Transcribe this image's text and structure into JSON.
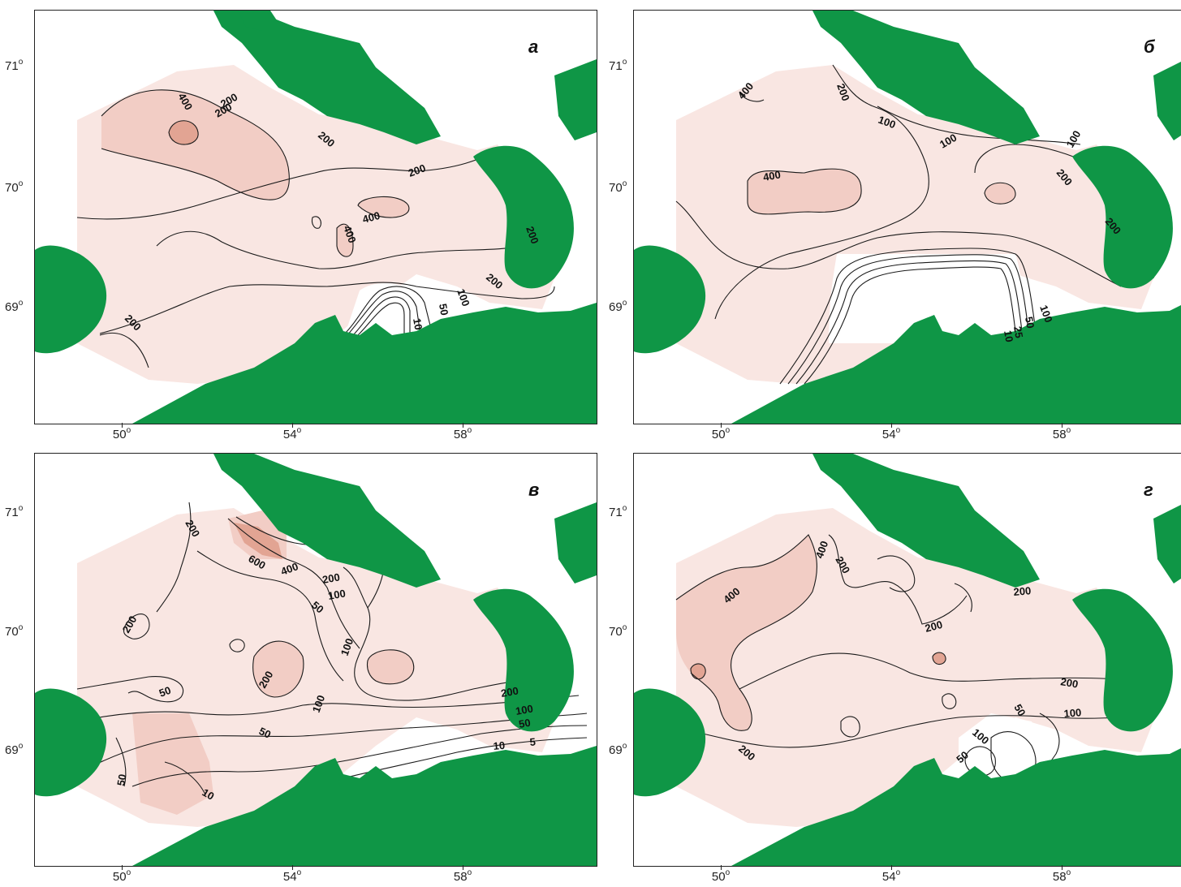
{
  "colors": {
    "land": "#0f9646",
    "sea_light": "#f9e6e2",
    "sea_mid": "#f2cdc5",
    "sea_dark": "#e2a493",
    "contour": "#1a1a1a"
  },
  "panels": [
    {
      "id": "a",
      "letter": "а",
      "lat_labels": [
        "71",
        "70",
        "69"
      ],
      "lon_labels": [
        "50",
        "54",
        "58"
      ],
      "contour_labels": [
        "400",
        "200",
        "200",
        "200",
        "200",
        "400",
        "400",
        "200",
        "200",
        "200",
        "100",
        "50",
        "10"
      ]
    },
    {
      "id": "b",
      "letter": "б",
      "lat_labels": [
        "71",
        "70",
        "69"
      ],
      "lon_labels": [
        "50",
        "54",
        "58"
      ],
      "contour_labels": [
        "400",
        "200",
        "100",
        "100",
        "100",
        "200",
        "400",
        "200",
        "100",
        "50",
        "25",
        "10"
      ]
    },
    {
      "id": "v",
      "letter": "в",
      "lat_labels": [
        "71",
        "70",
        "69"
      ],
      "lon_labels": [
        "50",
        "54",
        "58"
      ],
      "contour_labels": [
        "200",
        "600",
        "400",
        "200",
        "100",
        "50",
        "200",
        "100",
        "200",
        "100",
        "200",
        "100",
        "50",
        "50",
        "50",
        "10",
        "5",
        "50",
        "10"
      ]
    },
    {
      "id": "g",
      "letter": "г",
      "lat_labels": [
        "71",
        "70",
        "69"
      ],
      "lon_labels": [
        "50",
        "54",
        "58"
      ],
      "contour_labels": [
        "400",
        "400",
        "200",
        "200",
        "200",
        "200",
        "100",
        "100",
        "50",
        "50",
        "200"
      ]
    }
  ],
  "degree_symbol": "o"
}
